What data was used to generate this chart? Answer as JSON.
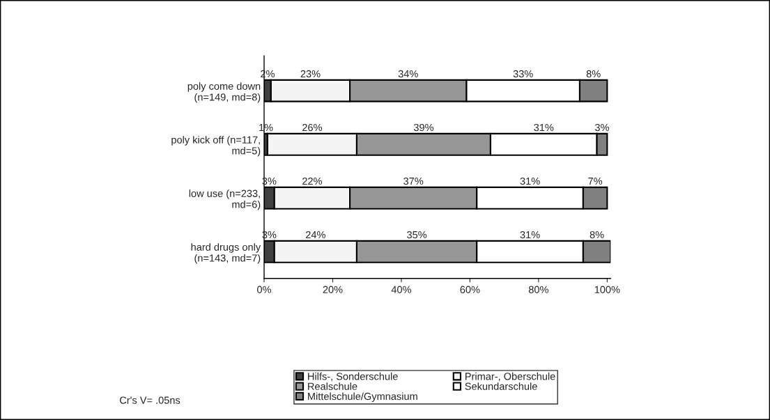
{
  "chart_data": {
    "type": "bar",
    "orientation": "horizontal",
    "stacked": true,
    "categories": [
      "poly come down\n(n=149, md=8)",
      "poly kick off (n=117,\nmd=5)",
      "low use (n=233,\nmd=6)",
      "hard drugs only\n(n=143, md=7)"
    ],
    "series": [
      {
        "name": "Hilfs-, Sonderschule",
        "color": "#404040",
        "values": [
          2,
          1,
          3,
          3
        ],
        "value_labels": [
          "2%",
          "1%",
          "3%",
          "3%"
        ]
      },
      {
        "name": "Primar-, Oberschule",
        "color": "#f4f4f4",
        "values": [
          23,
          26,
          22,
          24
        ],
        "value_labels": [
          "23%",
          "26%",
          "22%",
          "24%"
        ]
      },
      {
        "name": "Realschule",
        "color": "#969696",
        "values": [
          34,
          39,
          37,
          35
        ],
        "value_labels": [
          "34%",
          "39%",
          "37%",
          "35%"
        ]
      },
      {
        "name": "Sekundarschule",
        "color": "#ffffff",
        "values": [
          33,
          31,
          31,
          31
        ],
        "value_labels": [
          "33%",
          "31%",
          "31%",
          "31%"
        ]
      },
      {
        "name": "Mittelschule/Gymnasium",
        "color": "#808080",
        "values": [
          8,
          3,
          7,
          8
        ],
        "value_labels": [
          "8%",
          "3%",
          "7%",
          "8%"
        ]
      }
    ],
    "xlim": [
      0,
      101
    ],
    "xticks": [
      {
        "value": 0,
        "label": "0%"
      },
      {
        "value": 20,
        "label": "20%"
      },
      {
        "value": 40,
        "label": "40%"
      },
      {
        "value": 60,
        "label": "60%"
      },
      {
        "value": 80,
        "label": "80%"
      },
      {
        "value": 100,
        "label": "100%"
      }
    ],
    "legend": "bottom",
    "grid": false,
    "annotations": [
      "Cr's V= .05ns"
    ]
  }
}
